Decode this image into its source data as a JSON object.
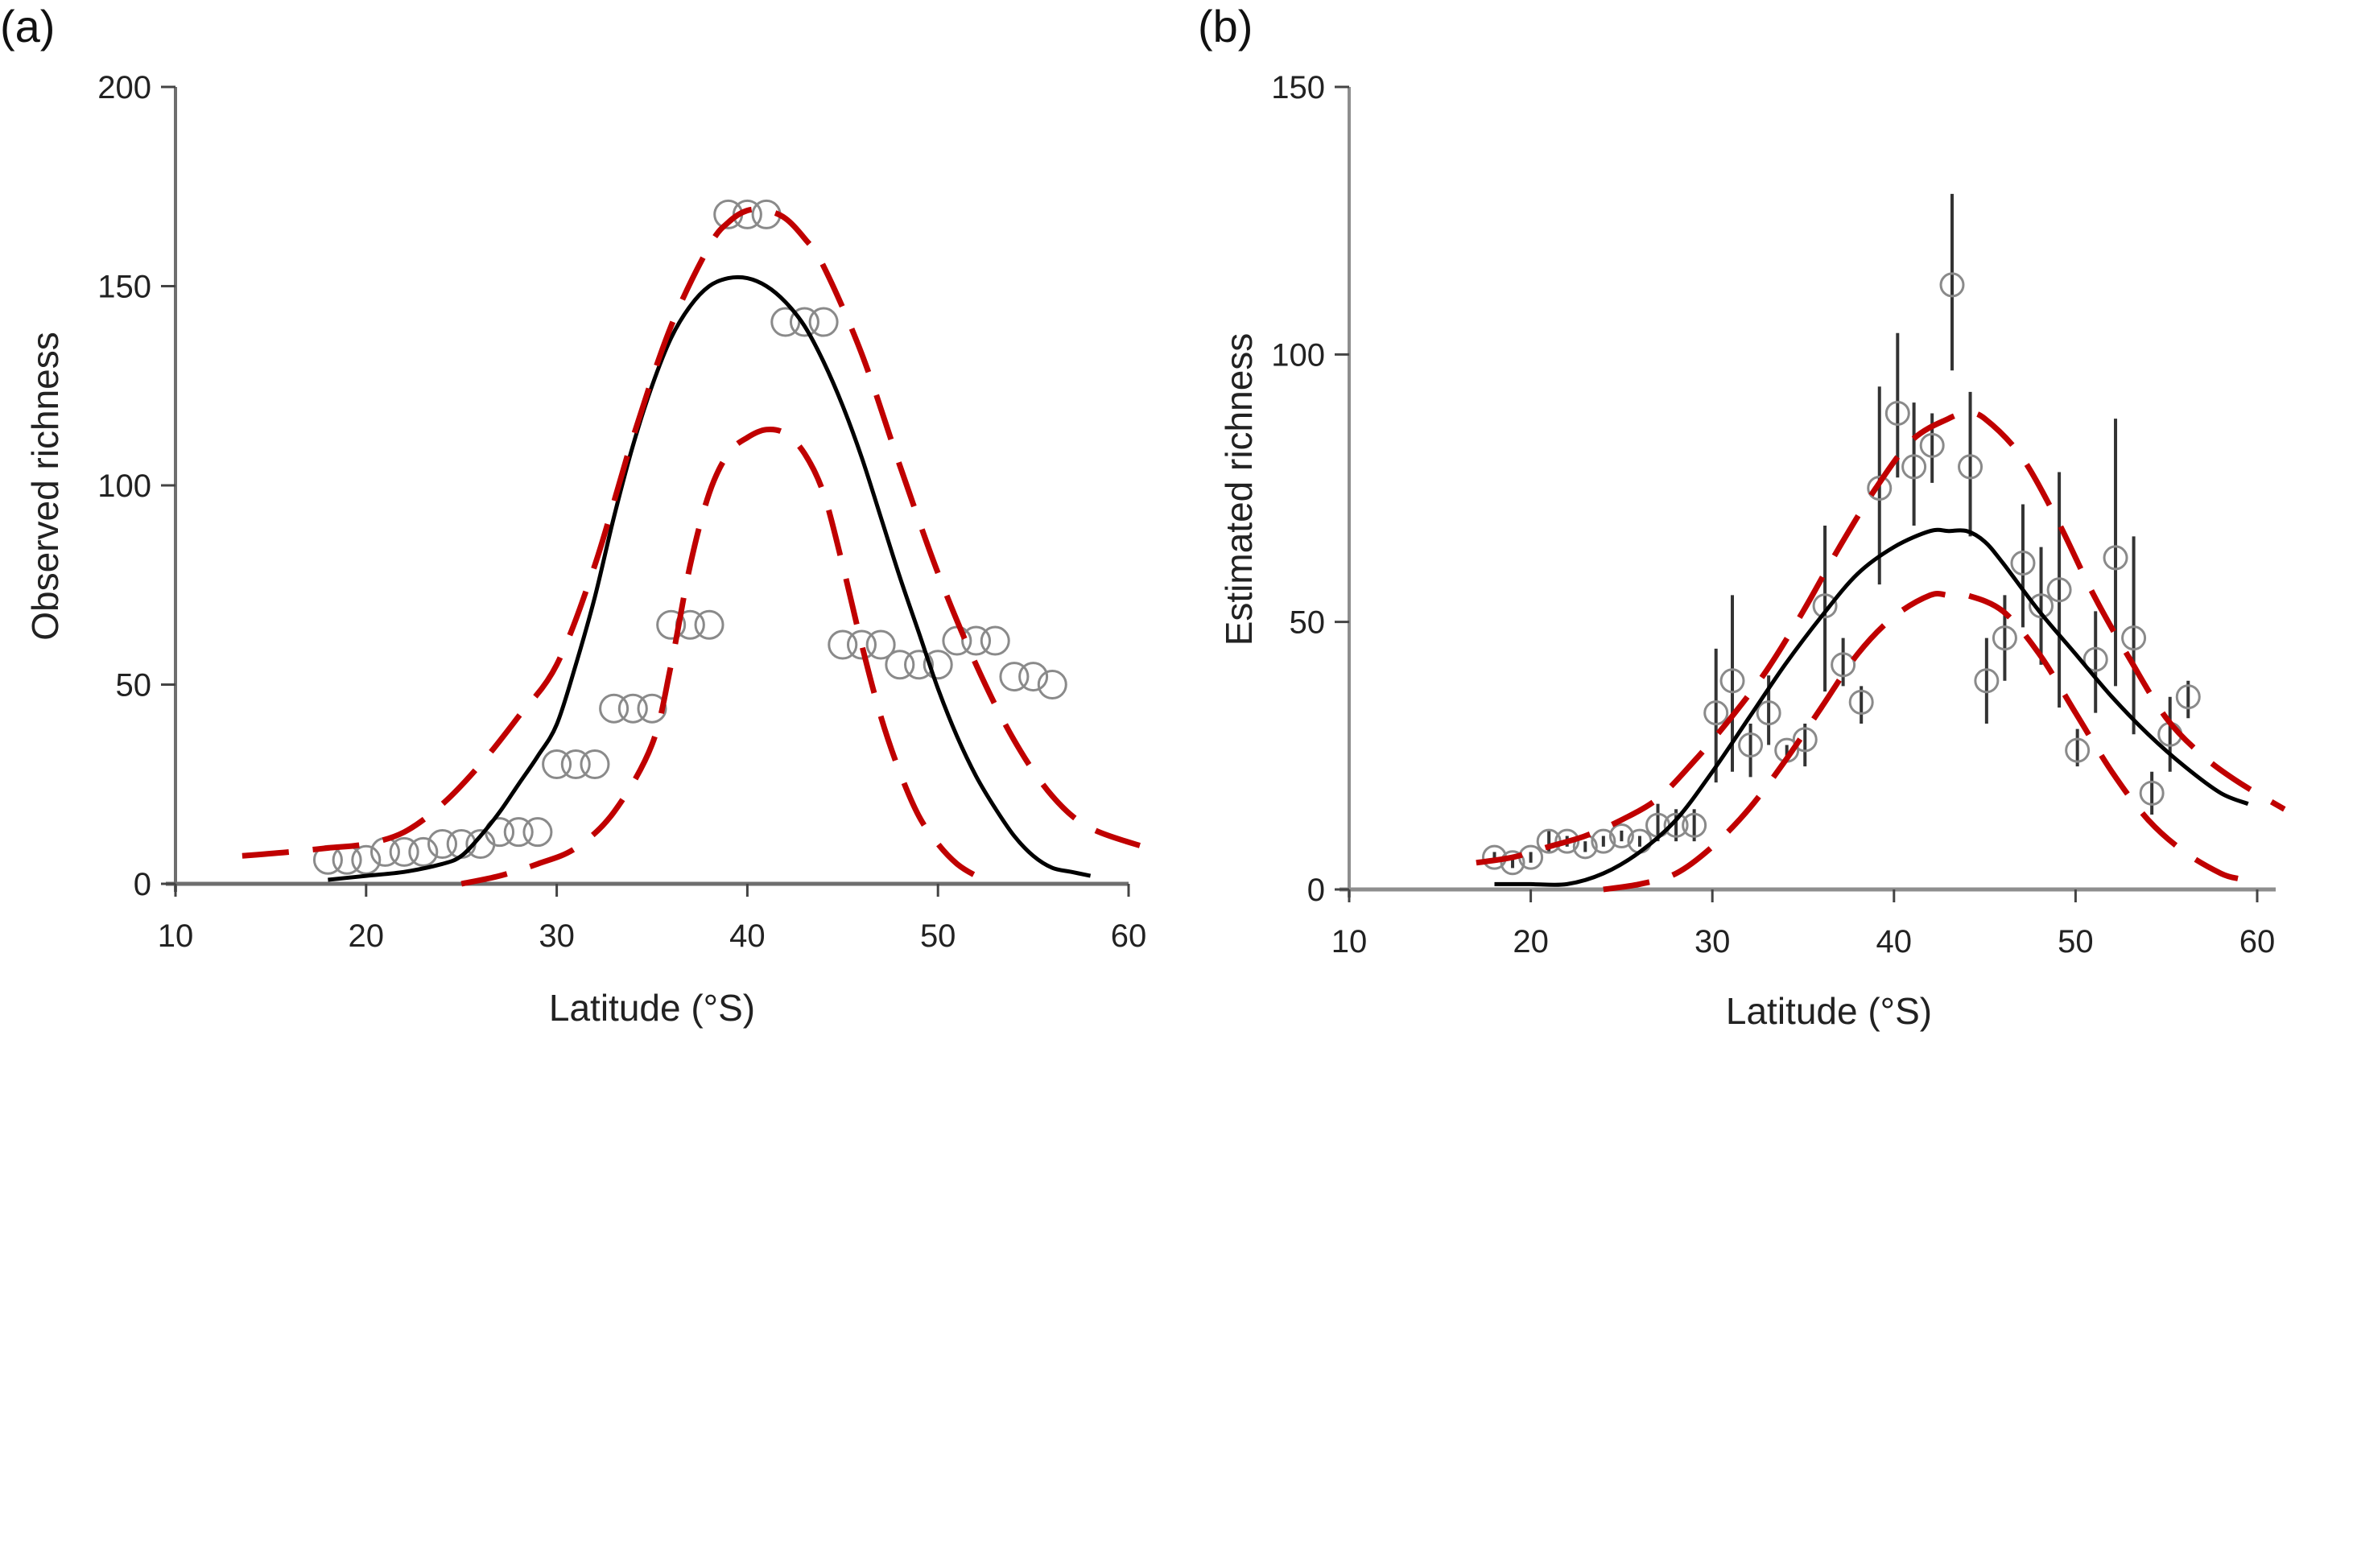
{
  "chart_data": [
    {
      "type": "scatter",
      "panel_label": "(a)",
      "xlabel": "Latitude (°S)",
      "ylabel": "Observed richness",
      "xlim": [
        10,
        60
      ],
      "ylim": [
        0,
        200
      ],
      "xticks": [
        "10",
        "20",
        "30",
        "40",
        "50",
        "60"
      ],
      "yticks": [
        "0",
        "50",
        "100",
        "150",
        "200"
      ],
      "grid": false,
      "colors": {
        "points": "#8a8a8a",
        "fit": "#000000",
        "bounds": "#c00000",
        "axis": "#6e6e6e"
      },
      "series": [
        {
          "name": "observed",
          "kind": "points",
          "x": [
            18,
            19,
            20,
            21,
            22,
            23,
            24,
            25,
            26,
            27,
            28,
            29,
            30,
            31,
            32,
            33,
            34,
            35,
            36,
            37,
            38,
            39,
            40,
            41,
            42,
            43,
            44,
            45,
            46,
            47,
            48,
            49,
            50,
            51,
            52,
            53,
            54,
            55,
            56
          ],
          "y": [
            6,
            6,
            6,
            8,
            8,
            8,
            10,
            10,
            10,
            13,
            13,
            13,
            30,
            30,
            30,
            44,
            44,
            44,
            65,
            65,
            65,
            168,
            168,
            168,
            141,
            141,
            141,
            60,
            60,
            60,
            55,
            55,
            55,
            61,
            61,
            61,
            52,
            52,
            50
          ]
        },
        {
          "name": "fitted",
          "kind": "line",
          "x": [
            18,
            20,
            22,
            24,
            25,
            26,
            27,
            28,
            29,
            30,
            31,
            32,
            33,
            34,
            35,
            36,
            37,
            38,
            39,
            40,
            41,
            42,
            43,
            44,
            45,
            46,
            47,
            48,
            49,
            50,
            51,
            52,
            53,
            54,
            55,
            56,
            57,
            58
          ],
          "y": [
            1,
            2,
            3,
            5,
            7,
            12,
            18,
            25,
            32,
            40,
            55,
            72,
            92,
            110,
            125,
            137,
            145,
            150,
            152,
            152,
            150,
            146,
            140,
            131,
            120,
            107,
            92,
            77,
            63,
            49,
            37,
            27,
            19,
            12,
            7,
            4,
            3,
            2
          ]
        },
        {
          "name": "upper bound",
          "kind": "dashed",
          "x": [
            13.5,
            16,
            18,
            20,
            22,
            24,
            26,
            28,
            30,
            32,
            34,
            36,
            38,
            39,
            40,
            41,
            42,
            43,
            44,
            46,
            48,
            50,
            52,
            54,
            56,
            58,
            61
          ],
          "y": [
            7,
            8,
            9,
            10,
            13,
            20,
            30,
            42,
            55,
            80,
            112,
            140,
            160,
            166,
            169,
            169,
            167,
            162,
            155,
            133,
            105,
            78,
            55,
            36,
            22,
            14,
            9
          ]
        },
        {
          "name": "lower bound",
          "kind": "dashed",
          "x": [
            25,
            27,
            29,
            31,
            33,
            35,
            36,
            37,
            38,
            39,
            40,
            41,
            42,
            43,
            44,
            45,
            46,
            47,
            48,
            49,
            50,
            51,
            52,
            53
          ],
          "y": [
            0,
            2,
            5,
            9,
            18,
            35,
            55,
            80,
            98,
            108,
            112,
            114,
            113,
            108,
            98,
            80,
            60,
            42,
            28,
            17,
            10,
            5,
            2,
            0
          ]
        }
      ]
    },
    {
      "type": "scatter",
      "panel_label": "(b)",
      "xlabel": "Latitude (°S)",
      "ylabel": "Estimated richness",
      "xlim": [
        10,
        60
      ],
      "ylim": [
        0,
        150
      ],
      "xticks": [
        "10",
        "20",
        "30",
        "40",
        "50",
        "60"
      ],
      "yticks": [
        "0",
        "50",
        "100",
        "150"
      ],
      "grid": false,
      "colors": {
        "points": "#8a8a8a",
        "errorbars": "#333333",
        "fit": "#000000",
        "bounds": "#c00000",
        "axis": "#8e8e8e"
      },
      "series": [
        {
          "name": "estimated",
          "kind": "points_with_errorbars",
          "x": [
            18,
            19,
            20,
            21,
            22,
            23,
            24,
            25,
            26,
            27,
            28,
            29,
            30.2,
            31.1,
            32.1,
            33.1,
            34.1,
            35.1,
            36.2,
            37.2,
            38.2,
            39.2,
            40.2,
            41.1,
            42.1,
            43.2,
            44.2,
            45.1,
            46.1,
            47.1,
            48.1,
            49.1,
            50.1,
            51.1,
            52.2,
            53.2,
            54.2,
            55.2,
            56.2
          ],
          "y": [
            6,
            5,
            6,
            9,
            9,
            8,
            9,
            10,
            9,
            12,
            12,
            12,
            33,
            39,
            27,
            33,
            26,
            28,
            53,
            42,
            35,
            75,
            89,
            79,
            83,
            113,
            79,
            39,
            47,
            61,
            53,
            56,
            26,
            43,
            62,
            47,
            18,
            29,
            36
          ],
          "lower": [
            5,
            4,
            5,
            7,
            8,
            7,
            8,
            9,
            8,
            9,
            9,
            9,
            20,
            22,
            21,
            27,
            25,
            23,
            37,
            38,
            31,
            57,
            77,
            68,
            76,
            97,
            66,
            31,
            39,
            49,
            42,
            34,
            23,
            33,
            38,
            29,
            14,
            22,
            32
          ],
          "upper": [
            7,
            6,
            7,
            11,
            10,
            9,
            10,
            11,
            10,
            16,
            15,
            15,
            45,
            55,
            31,
            40,
            27,
            31,
            68,
            47,
            38,
            94,
            104,
            91,
            89,
            130,
            93,
            47,
            55,
            72,
            64,
            78,
            30,
            52,
            88,
            66,
            22,
            36,
            39
          ]
        },
        {
          "name": "fitted",
          "kind": "line",
          "x": [
            18,
            20,
            22,
            24,
            26,
            28,
            30,
            32,
            34,
            36,
            38,
            40,
            42,
            43,
            44,
            45,
            46,
            48,
            50,
            52,
            54,
            56,
            58,
            59.5
          ],
          "y": [
            1,
            1,
            1,
            3,
            7,
            13,
            22,
            32,
            42,
            51,
            59,
            64,
            67,
            67,
            67,
            65,
            61,
            52,
            44,
            36,
            29,
            23,
            18,
            16
          ]
        },
        {
          "name": "upper bound",
          "kind": "dashed",
          "x": [
            17,
            19,
            21,
            23,
            25,
            27,
            29,
            31,
            33,
            35,
            37,
            39,
            41,
            43,
            44,
            45,
            47,
            49,
            51,
            53,
            55,
            57,
            59,
            61.5
          ],
          "y": [
            5,
            6,
            8,
            10,
            13,
            17,
            24,
            32,
            41,
            52,
            64,
            75,
            84,
            88,
            89,
            88,
            81,
            69,
            55,
            43,
            32,
            25,
            20,
            15
          ]
        },
        {
          "name": "lower bound",
          "kind": "dashed",
          "x": [
            24,
            26,
            28,
            30,
            32,
            34,
            36,
            38,
            40,
            42,
            43,
            44,
            46,
            48,
            50,
            52,
            54,
            56,
            58,
            59
          ],
          "y": [
            0,
            1,
            3,
            8,
            15,
            24,
            34,
            44,
            51,
            55,
            55,
            55,
            52,
            44,
            33,
            22,
            13,
            7,
            3,
            2
          ]
        }
      ]
    }
  ]
}
